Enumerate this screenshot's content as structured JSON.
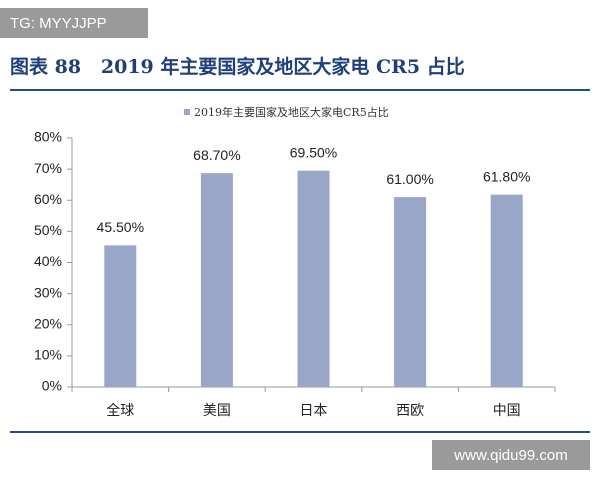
{
  "watermarks": [
    "TG: MYYJJPP",
    "www.qidu99.com"
  ],
  "chart_data": {
    "type": "bar",
    "title": "图表 88   2019 年主要国家及地区大家电 CR5 占比",
    "categories": [
      "全球",
      "美国",
      "日本",
      "西欧",
      "中国"
    ],
    "series": [
      {
        "name": "2019年主要国家及地区大家电CR5占比",
        "color": "#98a6c8",
        "values": [
          45.5,
          68.7,
          69.5,
          61.0,
          61.8
        ],
        "value_labels": [
          "45.50%",
          "68.70%",
          "69.50%",
          "61.00%",
          "61.80%"
        ]
      }
    ],
    "ylim": [
      0,
      80
    ],
    "yticks": [
      {
        "value": 0,
        "label": "0%"
      },
      {
        "value": 10,
        "label": "10%"
      },
      {
        "value": 20,
        "label": "20%"
      },
      {
        "value": 30,
        "label": "30%"
      },
      {
        "value": 40,
        "label": "40%"
      },
      {
        "value": 50,
        "label": "50%"
      },
      {
        "value": 60,
        "label": "60%"
      },
      {
        "value": 70,
        "label": "70%"
      },
      {
        "value": 80,
        "label": "80%"
      }
    ],
    "legend": "top",
    "grid": false
  }
}
